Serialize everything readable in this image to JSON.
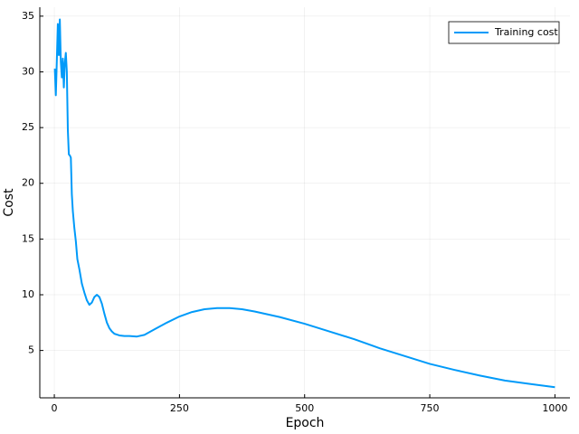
{
  "chart_data": {
    "type": "line",
    "x_label": "Epoch",
    "y_label": "Cost",
    "x": [
      1,
      3,
      5,
      7,
      9,
      11,
      13,
      15,
      17,
      19,
      21,
      23,
      25,
      27,
      29,
      31,
      33,
      35,
      37,
      40,
      43,
      46,
      50,
      55,
      60,
      65,
      70,
      75,
      80,
      85,
      90,
      95,
      100,
      105,
      110,
      115,
      120,
      130,
      140,
      150,
      165,
      180,
      200,
      225,
      250,
      275,
      300,
      325,
      350,
      375,
      400,
      450,
      500,
      550,
      600,
      650,
      700,
      750,
      800,
      850,
      900,
      950,
      1000
    ],
    "series": [
      {
        "name": "Training cost",
        "color": "#009af9",
        "values": [
          30.3,
          27.9,
          31,
          34.3,
          31.5,
          34.7,
          30.9,
          29.5,
          31.2,
          28.6,
          30.8,
          31.7,
          30,
          24.8,
          22.6,
          22.5,
          22.3,
          19,
          17.5,
          16,
          14.8,
          13.2,
          12.3,
          11,
          10.2,
          9.5,
          9.1,
          9.3,
          9.8,
          10.0,
          9.8,
          9.2,
          8.3,
          7.5,
          7.0,
          6.7,
          6.5,
          6.35,
          6.3,
          6.3,
          6.25,
          6.4,
          6.9,
          7.5,
          8.05,
          8.45,
          8.7,
          8.8,
          8.8,
          8.7,
          8.5,
          8.0,
          7.4,
          6.7,
          6.0,
          5.2,
          4.5,
          3.8,
          3.25,
          2.75,
          2.3,
          2.0,
          1.7
        ]
      }
    ],
    "xlim": [
      -29,
      1030
    ],
    "ylim": [
      0.75,
      35.8
    ],
    "xticks": [
      0,
      250,
      500,
      750,
      1000
    ],
    "yticks": [
      5,
      10,
      15,
      20,
      25,
      30,
      35
    ],
    "grid": true,
    "legend": "top-right"
  }
}
